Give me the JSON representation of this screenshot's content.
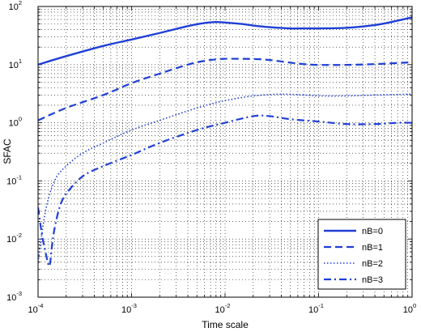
{
  "chart_data": {
    "type": "line",
    "title": "",
    "xlabel": "Time scale",
    "ylabel": "SFAC",
    "x_scale": "log",
    "y_scale": "log",
    "xlim": [
      0.0001,
      1
    ],
    "ylim": [
      0.001,
      100
    ],
    "x_ticks": [
      {
        "base": "10",
        "exp": "-4",
        "value": 0.0001
      },
      {
        "base": "10",
        "exp": "-3",
        "value": 0.001
      },
      {
        "base": "10",
        "exp": "-2",
        "value": 0.01
      },
      {
        "base": "10",
        "exp": "-1",
        "value": 0.1
      },
      {
        "base": "10",
        "exp": "0",
        "value": 1
      }
    ],
    "y_ticks": [
      {
        "base": "10",
        "exp": "-3",
        "value": 0.001
      },
      {
        "base": "10",
        "exp": "-2",
        "value": 0.01
      },
      {
        "base": "10",
        "exp": "-1",
        "value": 0.1
      },
      {
        "base": "10",
        "exp": "0",
        "value": 1
      },
      {
        "base": "10",
        "exp": "1",
        "value": 10
      },
      {
        "base": "10",
        "exp": "2",
        "value": 100
      }
    ],
    "grid": true,
    "legend_position": "bottom-right",
    "line_color": "#1f3fd6",
    "series": [
      {
        "name": "nB=0",
        "style": "solid",
        "x": [
          0.0001,
          0.0002,
          0.0005,
          0.001,
          0.002,
          0.004,
          0.006,
          0.008,
          0.01,
          0.015,
          0.02,
          0.03,
          0.05,
          0.07,
          0.1,
          0.2,
          0.4,
          0.6,
          1
        ],
        "y": [
          10,
          14,
          21,
          27,
          35,
          46,
          52,
          54,
          53,
          50,
          47,
          44,
          42,
          42,
          42,
          43,
          48,
          54,
          65
        ]
      },
      {
        "name": "nB=1",
        "style": "dashed",
        "x": [
          0.0001,
          0.0002,
          0.0005,
          0.001,
          0.002,
          0.004,
          0.006,
          0.008,
          0.01,
          0.02,
          0.03,
          0.05,
          0.07,
          0.1,
          0.2,
          0.4,
          0.6,
          1
        ],
        "y": [
          1.1,
          1.8,
          3.0,
          4.8,
          7.0,
          10.0,
          11.6,
          12.3,
          12.6,
          12.5,
          12.0,
          10.8,
          10.2,
          9.9,
          9.9,
          10.2,
          10.5,
          11.0
        ]
      },
      {
        "name": "nB=2",
        "style": "dotted",
        "x": [
          0.0001,
          0.00012,
          0.00015,
          0.0002,
          0.0003,
          0.0005,
          0.001,
          0.002,
          0.004,
          0.007,
          0.01,
          0.02,
          0.04,
          0.07,
          0.1,
          0.2,
          0.4,
          1
        ],
        "y": [
          0.004,
          0.03,
          0.1,
          0.18,
          0.3,
          0.45,
          0.75,
          1.1,
          1.6,
          2.1,
          2.4,
          2.9,
          3.1,
          3.0,
          2.9,
          2.9,
          3.0,
          3.1
        ]
      },
      {
        "name": "nB=3",
        "style": "dashdot",
        "x": [
          0.0001,
          0.00011,
          0.00012,
          0.00013,
          0.000135,
          0.00014,
          0.00015,
          0.00017,
          0.0002,
          0.0003,
          0.0005,
          0.001,
          0.002,
          0.005,
          0.01,
          0.02,
          0.03,
          0.05,
          0.1,
          0.2,
          0.4,
          0.7,
          1
        ],
        "y": [
          0.035,
          0.012,
          0.006,
          0.0035,
          0.004,
          0.007,
          0.015,
          0.035,
          0.06,
          0.12,
          0.18,
          0.28,
          0.45,
          0.75,
          1.0,
          1.3,
          1.3,
          1.15,
          1.05,
          0.95,
          0.95,
          1.0,
          1.0
        ]
      }
    ]
  }
}
